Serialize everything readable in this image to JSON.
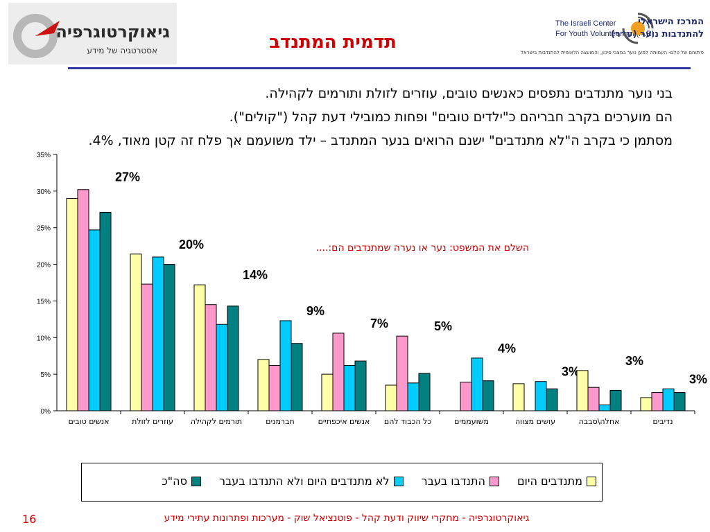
{
  "header": {
    "title": "תדמית המתנדב",
    "left_logo": {
      "brand": "גיאוקרטוגרפיה",
      "tagline": "אסטרטגיה של מידע"
    },
    "right_logo": {
      "en_line1": "The Israeli Center",
      "en_line2": "For Youth Volunteerism (A.R)",
      "he_line1": "המרכז הישראלי",
      "he_line2": "להתנדבות נוער (ע״ר)",
      "small_text": "פיתוחם של טלם- העמותה למען נוער במצבי סיכון, והמועצה הלאומית להתנדבות בישראל"
    }
  },
  "bullets": [
    "בני נוער מתנדבים נתפסים כאנשים טובים, עוזרים לזולת ותורמים לקהילה.",
    "הם מוערכים בקרב חבריהם כ\"ילדים טובים\" ופחות כמובילי דעת קהל (\"קולים\").",
    "מסתמן כי בקרב ה\"לא מתנדבים\" ישנם הרואים בנער המתנדב – ילד משועמם אך פלח זה קטן מאוד, 4%."
  ],
  "completion_note": "השלם את המשפט: נער או נערה שמתנדבים הם:....",
  "chart_data": {
    "type": "bar",
    "categories": [
      "אנשים טובים",
      "עוזרים לזולת",
      "תורמים לקהילה",
      "חברמנים",
      "אנשים איכפתיים",
      "כל הכבוד להם",
      "משועממים",
      "עושים מצווה",
      "אחלה\\סבבה",
      "נדיבים"
    ],
    "series": [
      {
        "name": "מתנדבים היום",
        "color": "#ffffa8",
        "values": [
          29,
          21.4,
          17.2,
          7,
          5,
          3.5,
          null,
          3.7,
          5.5,
          1.8
        ]
      },
      {
        "name": "התנדבו בעבר",
        "color": "#ff99cc",
        "values": [
          30.2,
          17.3,
          14.5,
          6.2,
          10.6,
          10.2,
          3.9,
          null,
          3.2,
          2.5
        ]
      },
      {
        "name": "לא מתנדבים היום ולא התנדבו בעבר",
        "color": "#00ccff",
        "values": [
          24.7,
          21,
          11.8,
          12.3,
          6.2,
          3.8,
          7.2,
          4,
          0.8,
          3
        ]
      },
      {
        "name": "סה\"כ",
        "color": "#008080",
        "values": [
          27.1,
          20,
          14.3,
          9.2,
          6.8,
          5.1,
          4.1,
          3,
          2.8,
          2.5
        ]
      }
    ],
    "total_labels": [
      "27%",
      "20%",
      "14%",
      "9%",
      "7%",
      "5%",
      "4%",
      "3%",
      "3%",
      "3%"
    ],
    "ylim": [
      0,
      35
    ],
    "yticks": [
      "0%",
      "5%",
      "10%",
      "15%",
      "20%",
      "25%",
      "30%",
      "35%"
    ],
    "grid": false,
    "legend_position": "bottom"
  },
  "footer": {
    "text": "גיאוקרטוגרפיה - מחקרי שיווק ודעת קהל - פוטנציאל שוק - מערכות ופתרונות עתירי מידע",
    "page_number": "16"
  }
}
